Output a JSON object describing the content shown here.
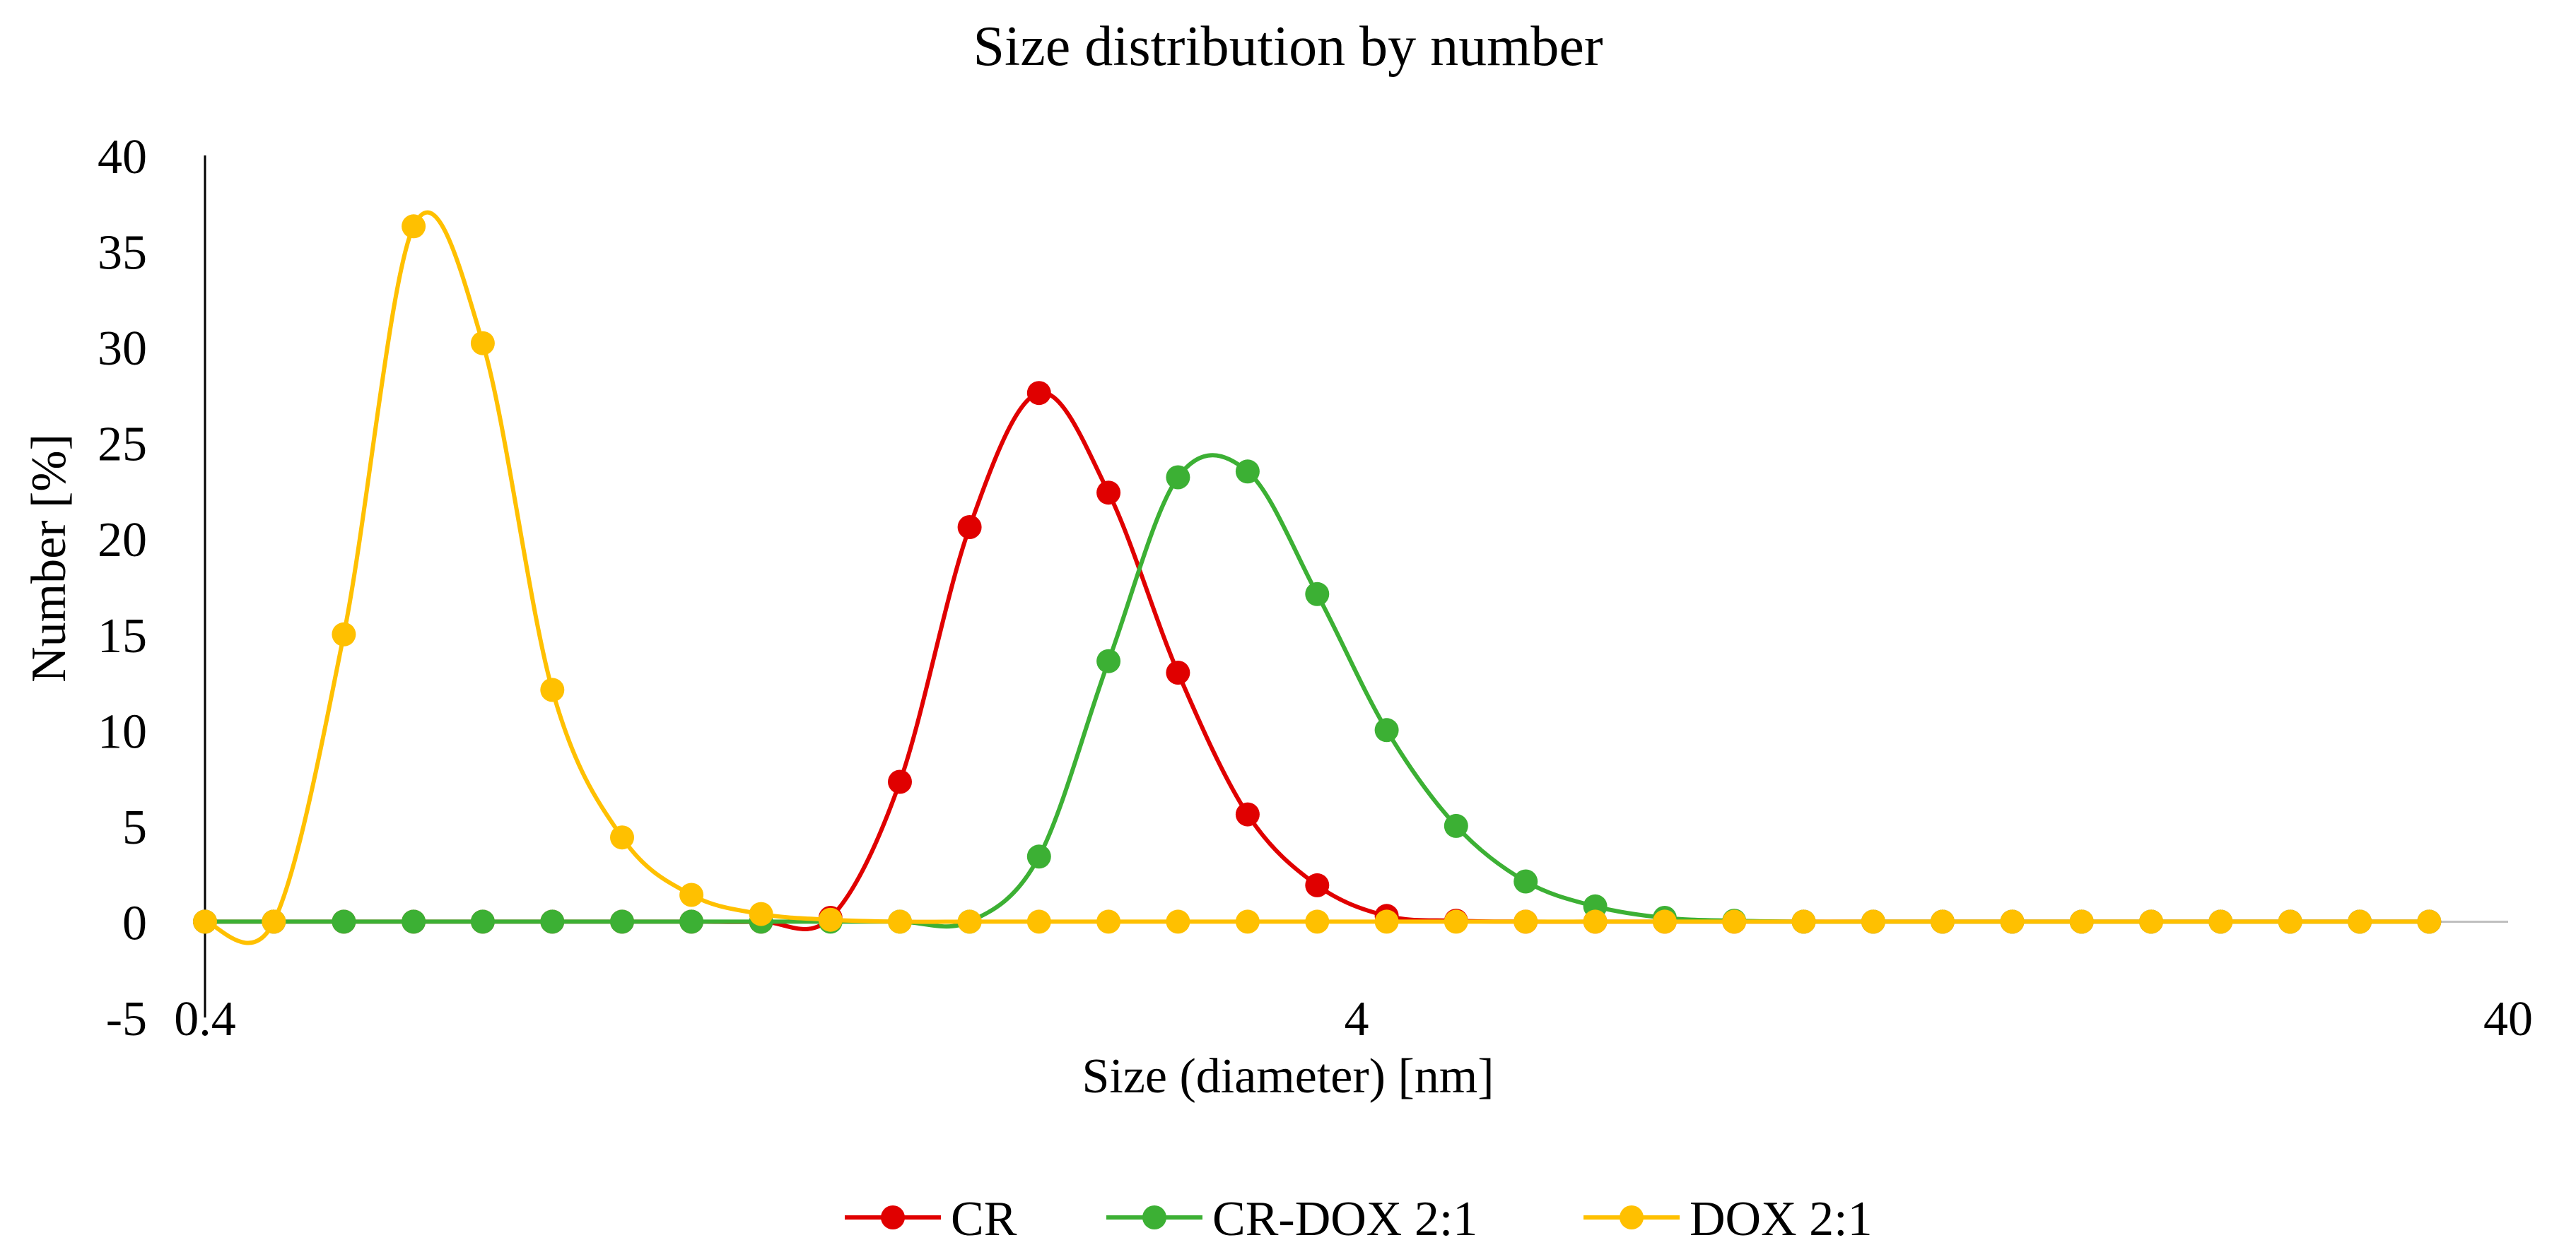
{
  "chart_data": {
    "type": "line",
    "title": "Size distribution  by number",
    "xlabel": "Size (diameter)  [nm]",
    "ylabel": "Number [%]",
    "xscale": "log",
    "xlim": [
      0.4,
      40
    ],
    "ylim": [
      -5,
      40
    ],
    "x_ticks": [
      0.4,
      4,
      40
    ],
    "x_tick_labels": [
      "0.4",
      "4",
      "40"
    ],
    "y_ticks": [
      -5,
      0,
      5,
      10,
      15,
      20,
      25,
      30,
      35,
      40
    ],
    "y_tick_labels": [
      "-5",
      "0",
      "5",
      "10",
      "15",
      "20",
      "25",
      "30",
      "35",
      "40"
    ],
    "grid": false,
    "legend_position": "bottom-center",
    "x": [
      0.4,
      0.459,
      0.528,
      0.607,
      0.697,
      0.801,
      0.921,
      1.058,
      1.216,
      1.397,
      1.605,
      1.845,
      2.12,
      2.436,
      2.799,
      3.217,
      3.697,
      4.248,
      4.881,
      5.609,
      6.446,
      7.407,
      8.511,
      9.78,
      11.24,
      12.91,
      14.84,
      17.05,
      19.59,
      22.51,
      25.87,
      29.73,
      34.16
    ],
    "series": [
      {
        "name": "CR",
        "color": "#e00000",
        "values": [
          0,
          0,
          0,
          0,
          0,
          0,
          0,
          0,
          0,
          0.2,
          7.3,
          20.6,
          27.6,
          22.4,
          13.0,
          5.6,
          1.9,
          0.3,
          0.05,
          0,
          0,
          0,
          0,
          0,
          0,
          0,
          0,
          0,
          0,
          0,
          0,
          0,
          0
        ]
      },
      {
        "name": "CR-DOX 2:1",
        "color": "#3cb034",
        "values": [
          0,
          0,
          0,
          0,
          0,
          0,
          0,
          0,
          0,
          0,
          0,
          0,
          3.4,
          13.6,
          23.2,
          23.5,
          17.1,
          10.0,
          5.0,
          2.1,
          0.8,
          0.2,
          0.05,
          0,
          0,
          0,
          0,
          0,
          0,
          0,
          0,
          0,
          0
        ]
      },
      {
        "name": "DOX 2:1",
        "color": "#ffc000",
        "values": [
          0,
          0,
          15.0,
          36.3,
          30.2,
          12.1,
          4.4,
          1.4,
          0.4,
          0.1,
          0,
          0,
          0,
          0,
          0,
          0,
          0,
          0,
          0,
          0,
          0,
          0,
          0,
          0,
          0,
          0,
          0,
          0,
          0,
          0,
          0,
          0,
          0
        ]
      }
    ]
  }
}
